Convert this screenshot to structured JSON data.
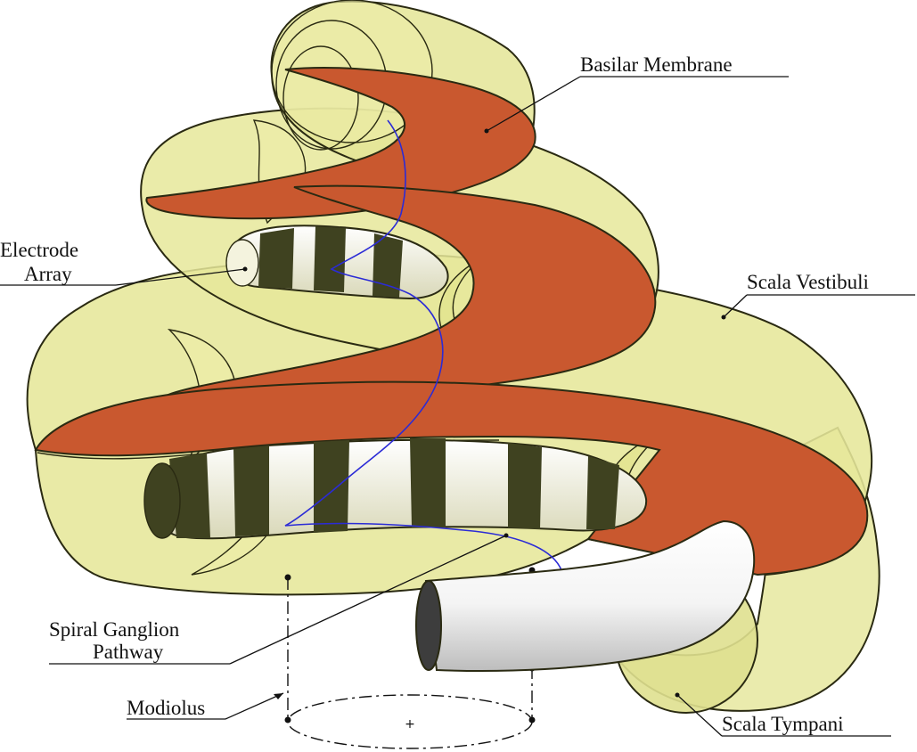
{
  "labels": {
    "basilar_membrane": "Basilar Membrane",
    "electrode_line1": "Electrode",
    "electrode_line2": "Array",
    "scala_vestibuli": "Scala Vestibuli",
    "spiral_ganglion_line1": "Spiral Ganglion",
    "spiral_ganglion_line2": "Pathway",
    "modiolus": "Modiolus",
    "scala_tympani": "Scala Tympani",
    "center_mark": "+"
  },
  "colors": {
    "scala_fill": "#e6e79a",
    "scala_fill_dark": "#c9c86a",
    "membrane": "#c8572f",
    "membrane_dark": "#9c3a1c",
    "electrode_light": "#f3f2dc",
    "electrode_dark": "#3f4220",
    "pathway": "#2b2bd6",
    "tube_light": "#ffffff",
    "tube_shade": "#c9c9c9",
    "ink": "#111111"
  }
}
